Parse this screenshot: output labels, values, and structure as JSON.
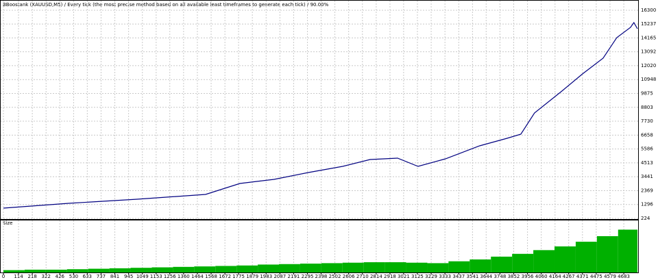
{
  "chart_data": [
    {
      "type": "line",
      "title": "BBoostank (XAUUSD,M5) / Every tick (the most precise method based on all available least timeframes to generate each tick) / 90.00%",
      "color": "#000080",
      "grid": true,
      "x": [
        0,
        491,
        1009,
        1526,
        1785,
        2043,
        2302,
        2561,
        2768,
        2975,
        3130,
        3337,
        3595,
        3802,
        3906,
        4009,
        4216,
        4371,
        4527,
        4630,
        4734,
        4759,
        4786
      ],
      "values": [
        1017,
        1387,
        1705,
        2075,
        2921,
        3238,
        3767,
        4243,
        4771,
        4877,
        4243,
        4825,
        5829,
        6411,
        6728,
        8367,
        10060,
        11382,
        12598,
        14185,
        14978,
        15347,
        14872
      ],
      "xlim": [
        0,
        4786
      ],
      "xticks": [
        0,
        114,
        218,
        322,
        426,
        530,
        633,
        737,
        841,
        945,
        1049,
        1153,
        1256,
        1360,
        1464,
        1568,
        1672,
        1775,
        1879,
        1983,
        2087,
        2191,
        2295,
        2398,
        2502,
        2606,
        2710,
        2814,
        2918,
        3021,
        3125,
        3229,
        3333,
        3437,
        3541,
        3644,
        3748,
        3852,
        3956,
        4060,
        4164,
        4267,
        4371,
        4475,
        4579,
        4683
      ],
      "ylim": [
        224,
        16300
      ],
      "yticks": [
        224,
        1296,
        2369,
        3441,
        4513,
        5586,
        6658,
        7730,
        8803,
        9875,
        10948,
        12020,
        13092,
        14165,
        15237,
        16300
      ]
    },
    {
      "type": "bar",
      "title": "Size",
      "color": "#00b000",
      "x": [
        0,
        160,
        320,
        480,
        640,
        800,
        960,
        1120,
        1280,
        1440,
        1600,
        1760,
        1920,
        2080,
        2240,
        2400,
        2560,
        2720,
        2880,
        3040,
        3200,
        3360,
        3520,
        3680,
        3840,
        4000,
        4160,
        4320,
        4480,
        4640
      ],
      "values": [
        5,
        6,
        6,
        7,
        8,
        9,
        10,
        11,
        12,
        13,
        14,
        15,
        17,
        18,
        19,
        20,
        21,
        22,
        22,
        21,
        20,
        24,
        28,
        34,
        40,
        48,
        56,
        66,
        78,
        92
      ],
      "xlim": [
        0,
        4786
      ],
      "ylim": [
        0,
        100
      ]
    }
  ]
}
